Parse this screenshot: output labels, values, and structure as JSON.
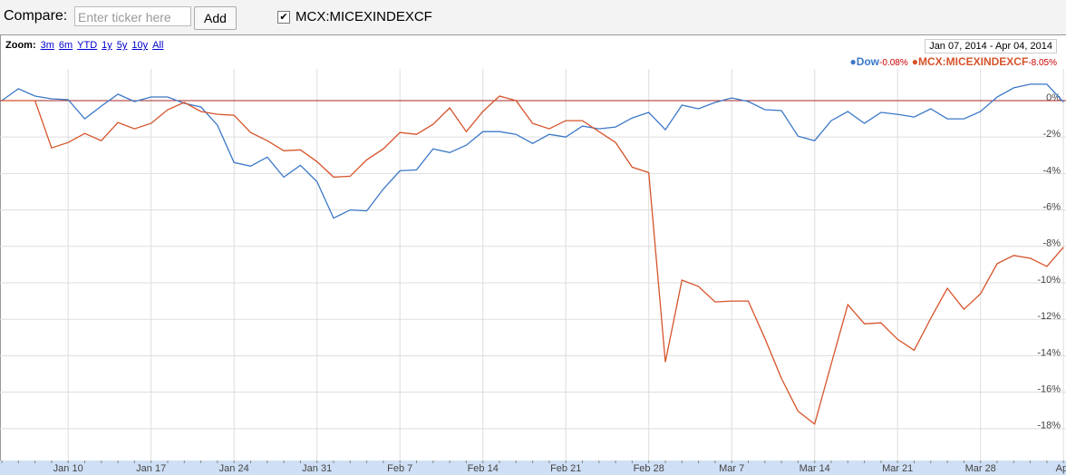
{
  "toolbar": {
    "compare_label": "Compare:",
    "input_placeholder": "Enter ticker here",
    "add_button": "Add",
    "ticker": "MCX:MICEXINDEXCF"
  },
  "zoom": {
    "label": "Zoom:",
    "options": [
      "3m",
      "6m",
      "YTD",
      "1y",
      "5y",
      "10y",
      "All"
    ]
  },
  "date_range": {
    "start": "Jan 07, 2014",
    "separator": "-",
    "end": "Apr 04, 2014"
  },
  "chart_data": {
    "type": "line",
    "categories": [
      null,
      null,
      null,
      null,
      "Jan 10",
      null,
      null,
      null,
      null,
      "Jan 17",
      null,
      null,
      null,
      null,
      "Jan 24",
      null,
      null,
      null,
      null,
      "Jan 31",
      null,
      null,
      null,
      null,
      "Feb 7",
      null,
      null,
      null,
      null,
      "Feb 14",
      null,
      null,
      null,
      null,
      "Feb 21",
      null,
      null,
      null,
      null,
      "Feb 28",
      null,
      null,
      null,
      null,
      "Mar 7",
      null,
      null,
      null,
      null,
      "Mar 14",
      null,
      null,
      null,
      null,
      "Mar 21",
      null,
      null,
      null,
      null,
      "Mar 28",
      null,
      null,
      null,
      null,
      "Apr"
    ],
    "series": [
      {
        "name": "Dow",
        "color": "#3c78c8",
        "change_label": "-0.08%",
        "values": [
          0,
          0.65,
          0.25,
          0.1,
          0.05,
          -1.0,
          -0.3,
          0.35,
          -0.05,
          0.2,
          0.2,
          -0.15,
          -0.35,
          -1.35,
          -3.4,
          -3.6,
          -3.1,
          -4.2,
          -3.55,
          -4.45,
          -6.45,
          -6.0,
          -6.05,
          -4.85,
          -3.85,
          -3.8,
          -2.65,
          -2.85,
          -2.45,
          -1.7,
          -1.7,
          -1.85,
          -2.35,
          -1.85,
          -2.0,
          -1.4,
          -1.55,
          -1.45,
          -0.95,
          -0.65,
          -1.6,
          -0.25,
          -0.45,
          -0.1,
          0.15,
          -0.05,
          -0.5,
          -0.55,
          -1.95,
          -2.2,
          -1.1,
          -0.6,
          -1.25,
          -0.65,
          -0.75,
          -0.9,
          -0.45,
          -1.0,
          -1.0,
          -0.6,
          0.2,
          0.7,
          0.9,
          0.9,
          -0.08
        ]
      },
      {
        "name": "MCX:MICEXINDEXCF",
        "color": "#d6532a",
        "change_label": "-8.05%",
        "values": [
          0,
          0,
          0,
          -2.6,
          -2.3,
          -1.8,
          -2.2,
          -1.2,
          -1.55,
          -1.25,
          -0.5,
          -0.1,
          -0.6,
          -0.75,
          -0.8,
          -1.75,
          -2.2,
          -2.75,
          -2.7,
          -3.35,
          -4.2,
          -4.15,
          -3.25,
          -2.65,
          -1.75,
          -1.85,
          -1.3,
          -0.4,
          -1.7,
          -0.6,
          0.25,
          0,
          -1.25,
          -1.55,
          -1.1,
          -1.1,
          -1.7,
          -2.3,
          -3.65,
          -3.95,
          -14.35,
          -9.85,
          -10.2,
          -11.05,
          -11.0,
          -11.0,
          -13.05,
          -15.25,
          -17.05,
          -17.75,
          -14.45,
          -11.2,
          -12.25,
          -12.2,
          -13.1,
          -13.7,
          -11.95,
          -10.3,
          -11.45,
          -10.6,
          -8.95,
          -8.5,
          -8.65,
          -9.1,
          -8.05
        ]
      }
    ],
    "ylim": [
      -19.75,
      1.74
    ],
    "yticks": [
      {
        "value": 0,
        "label": "0%"
      },
      {
        "value": -2,
        "label": "-2%"
      },
      {
        "value": -4,
        "label": "-4%"
      },
      {
        "value": -6,
        "label": "-6%"
      },
      {
        "value": -8,
        "label": "-8%"
      },
      {
        "value": -10,
        "label": "-10%"
      },
      {
        "value": -12,
        "label": "-12%"
      },
      {
        "value": -14,
        "label": "-14%"
      },
      {
        "value": -16,
        "label": "-16%"
      },
      {
        "value": -18,
        "label": "-18%"
      }
    ],
    "grid": true,
    "baseline_color": "#a52a2a"
  }
}
